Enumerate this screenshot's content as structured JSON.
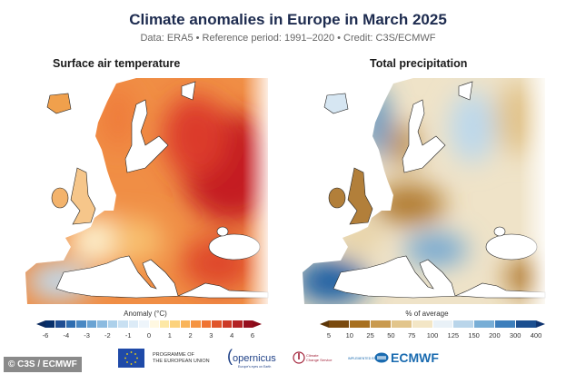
{
  "header": {
    "title": "Climate anomalies in Europe in March 2025",
    "subtitle": "Data: ERA5 • Reference period: 1991–2020 • Credit: C3S/ECMWF"
  },
  "maps": [
    {
      "title": "Surface air temperature",
      "variable": "temperature anomaly"
    },
    {
      "title": "Total precipitation",
      "variable": "precipitation percent of average"
    }
  ],
  "legend_temperature": {
    "title": "Anomaly (°C)",
    "ticks": [
      "-6",
      "-4",
      "-3",
      "-2",
      "-1",
      "0",
      "1",
      "2",
      "3",
      "4",
      "6"
    ],
    "colors": [
      "#08306b",
      "#1f4e93",
      "#2f6db0",
      "#4a88c3",
      "#6aa3d3",
      "#8cbbe0",
      "#acd0ea",
      "#c8e0f2",
      "#dcebf7",
      "#eef5fb",
      "#fff8e1",
      "#fde8a6",
      "#fcd27c",
      "#f9b45a",
      "#f59442",
      "#ef7433",
      "#e0552b",
      "#cc3a27",
      "#b32324",
      "#960f1e"
    ],
    "low_arrow": "#0b2a5e",
    "high_arrow": "#8a0b1a"
  },
  "legend_precipitation": {
    "title": "% of average",
    "ticks": [
      "5",
      "10",
      "25",
      "50",
      "75",
      "100",
      "125",
      "150",
      "200",
      "300",
      "400"
    ],
    "colors": [
      "#7a4a0f",
      "#a8701f",
      "#c99a4f",
      "#e2c58c",
      "#f3e6c6",
      "#e9f1f7",
      "#b9d5ea",
      "#78aed6",
      "#3d7fbc",
      "#1b4f90"
    ],
    "low_arrow": "#5c3608",
    "high_arrow": "#0f3470"
  },
  "footer": {
    "credit": "© C3S / ECMWF",
    "eu_text_1": "PROGRAMME OF",
    "eu_text_2": "THE EUROPEAN UNION",
    "copernicus": "opernicus",
    "copernicus_tag": "Europe's eyes on Earth",
    "c3s_text_1": "Climate",
    "c3s_text_2": "Change Service",
    "implemented": "IMPLEMENTED BY",
    "ecmwf": "ECMWF"
  }
}
